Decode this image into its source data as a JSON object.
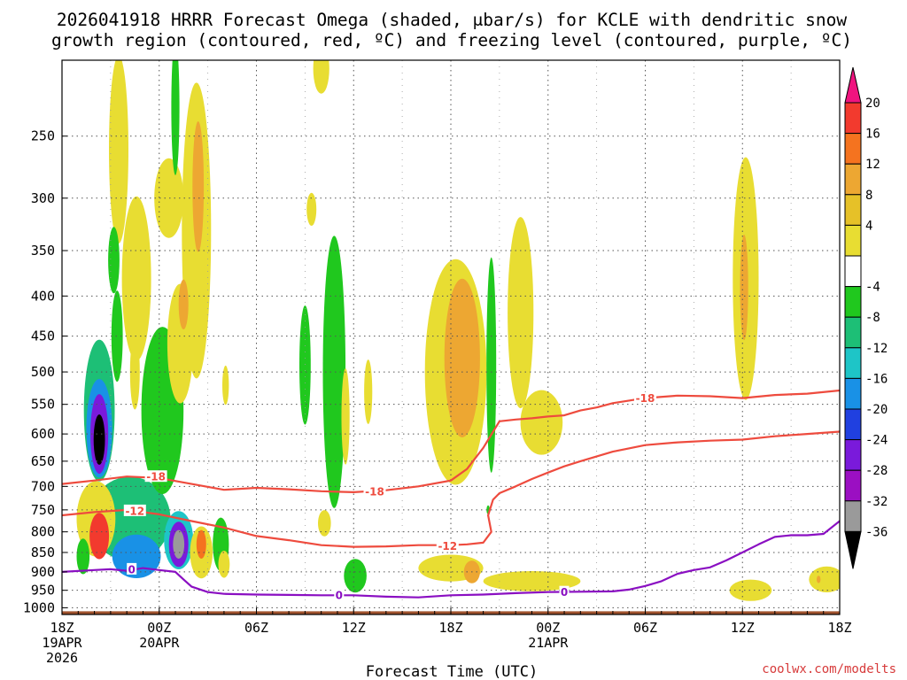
{
  "title_line1": "2026041918 HRRR Forecast Omega (shaded, μbar/s) for KCLE with dendritic snow",
  "title_line2": "growth region (contoured, red, ºC) and freezing level (contoured, purple, ºC)",
  "xlabel": "Forecast Time (UTC)",
  "credit": "coolwx.com/modelts",
  "chart_data": {
    "type": "heatmap",
    "title": "2026041918 HRRR Forecast Omega (shaded, μbar/s) for KCLE with dendritic snow growth region (contoured, red, ºC) and freezing level (contoured, purple, ºC)",
    "xlabel": "Forecast Time (UTC)",
    "ylabel": "",
    "x_range_hours": [
      0,
      48
    ],
    "y_range_mb": [
      200,
      1020
    ],
    "y_scale": "log",
    "grid": true,
    "x_ticks": [
      {
        "h": 0,
        "l1": "18Z",
        "l2": "19APR",
        "l3": "2026"
      },
      {
        "h": 6,
        "l1": "00Z",
        "l2": "20APR",
        "l3": ""
      },
      {
        "h": 12,
        "l1": "06Z",
        "l2": "",
        "l3": ""
      },
      {
        "h": 18,
        "l1": "12Z",
        "l2": "",
        "l3": ""
      },
      {
        "h": 24,
        "l1": "18Z",
        "l2": "",
        "l3": ""
      },
      {
        "h": 30,
        "l1": "00Z",
        "l2": "21APR",
        "l3": ""
      },
      {
        "h": 36,
        "l1": "06Z",
        "l2": "",
        "l3": ""
      },
      {
        "h": 42,
        "l1": "12Z",
        "l2": "",
        "l3": ""
      },
      {
        "h": 48,
        "l1": "18Z",
        "l2": "",
        "l3": ""
      }
    ],
    "y_ticks": [
      250,
      300,
      350,
      400,
      450,
      500,
      550,
      600,
      650,
      700,
      750,
      800,
      850,
      900,
      950,
      1000
    ],
    "colorbar": {
      "levels": [
        20,
        16,
        12,
        8,
        4,
        -4,
        -8,
        -12,
        -16,
        -20,
        -24,
        -28,
        -32,
        -36
      ],
      "colors": [
        "#f0147f",
        "#f23a2e",
        "#f5731f",
        "#eda732",
        "#e6c128",
        "#e8dd32",
        "#ffffff",
        "#20c81e",
        "#1dbf76",
        "#1ec5c7",
        "#1991e6",
        "#2040e0",
        "#7a1adb",
        "#9b0fc2",
        "#9a9a9a",
        "#000000"
      ]
    },
    "omega_blobs": [
      {
        "h": 2.3,
        "p": 610,
        "dh": 0.35,
        "dp": 90,
        "v": -36
      },
      {
        "h": 2.3,
        "p": 600,
        "dh": 0.55,
        "dp": 140,
        "v": -26
      },
      {
        "h": 2.3,
        "p": 590,
        "dh": 0.8,
        "dp": 170,
        "v": -16
      },
      {
        "h": 2.3,
        "p": 560,
        "dh": 0.95,
        "dp": 230,
        "v": -8
      },
      {
        "h": 1.3,
        "p": 860,
        "dh": 0.4,
        "dp": 90,
        "v": -6
      },
      {
        "h": 4.2,
        "p": 770,
        "dh": 2.5,
        "dp": 190,
        "v": -10
      },
      {
        "h": 4.6,
        "p": 860,
        "dh": 1.5,
        "dp": 110,
        "v": -16
      },
      {
        "h": 7.2,
        "p": 830,
        "dh": 0.35,
        "dp": 70,
        "v": -32
      },
      {
        "h": 7.2,
        "p": 830,
        "dh": 0.6,
        "dp": 110,
        "v": -24
      },
      {
        "h": 7.2,
        "p": 820,
        "dh": 0.9,
        "dp": 140,
        "v": -14
      },
      {
        "h": 6.2,
        "p": 560,
        "dh": 1.3,
        "dp": 270,
        "v": -7
      },
      {
        "h": 3.4,
        "p": 450,
        "dh": 0.35,
        "dp": 120,
        "v": -6
      },
      {
        "h": 3.2,
        "p": 360,
        "dh": 0.35,
        "dp": 70,
        "v": -6
      },
      {
        "h": 7.0,
        "p": 230,
        "dh": 0.25,
        "dp": 90,
        "v": -6
      },
      {
        "h": 2.3,
        "p": 810,
        "dh": 0.6,
        "dp": 110,
        "v": 18
      },
      {
        "h": 2.1,
        "p": 770,
        "dh": 1.2,
        "dp": 170,
        "v": 6
      },
      {
        "h": 8.6,
        "p": 830,
        "dh": 0.3,
        "dp": 70,
        "v": 12
      },
      {
        "h": 8.6,
        "p": 850,
        "dh": 0.7,
        "dp": 130,
        "v": 5
      },
      {
        "h": 8.4,
        "p": 290,
        "dh": 0.35,
        "dp": 110,
        "v": 10
      },
      {
        "h": 8.3,
        "p": 330,
        "dh": 0.9,
        "dp": 270,
        "v": 5
      },
      {
        "h": 7.5,
        "p": 410,
        "dh": 0.3,
        "dp": 60,
        "v": 9
      },
      {
        "h": 7.3,
        "p": 460,
        "dh": 0.8,
        "dp": 160,
        "v": 5
      },
      {
        "h": 6.6,
        "p": 300,
        "dh": 0.9,
        "dp": 70,
        "v": 5
      },
      {
        "h": 4.6,
        "p": 380,
        "dh": 0.9,
        "dp": 180,
        "v": 5
      },
      {
        "h": 3.5,
        "p": 260,
        "dh": 0.6,
        "dp": 140,
        "v": 5
      },
      {
        "h": 4.5,
        "p": 500,
        "dh": 0.3,
        "dp": 110,
        "v": 5
      },
      {
        "h": 9.8,
        "p": 830,
        "dh": 0.5,
        "dp": 130,
        "v": -6
      },
      {
        "h": 10.0,
        "p": 880,
        "dh": 0.35,
        "dp": 70,
        "v": 5
      },
      {
        "h": 10.1,
        "p": 520,
        "dh": 0.2,
        "dp": 60,
        "v": 5
      },
      {
        "h": 15.0,
        "p": 490,
        "dh": 0.35,
        "dp": 170,
        "v": -7
      },
      {
        "h": 16.8,
        "p": 500,
        "dh": 0.7,
        "dp": 380,
        "v": -7
      },
      {
        "h": 16.0,
        "p": 205,
        "dh": 0.5,
        "dp": 30,
        "v": 5
      },
      {
        "h": 15.4,
        "p": 310,
        "dh": 0.3,
        "dp": 30,
        "v": 5
      },
      {
        "h": 16.2,
        "p": 780,
        "dh": 0.4,
        "dp": 60,
        "v": 5
      },
      {
        "h": 17.5,
        "p": 570,
        "dh": 0.25,
        "dp": 160,
        "v": 5
      },
      {
        "h": 18.9,
        "p": 530,
        "dh": 0.25,
        "dp": 100,
        "v": 5
      },
      {
        "h": 18.1,
        "p": 910,
        "dh": 0.7,
        "dp": 90,
        "v": -7
      },
      {
        "h": 24.7,
        "p": 480,
        "dh": 1.1,
        "dp": 220,
        "v": 10
      },
      {
        "h": 24.3,
        "p": 500,
        "dh": 1.9,
        "dp": 320,
        "v": 5
      },
      {
        "h": 26.5,
        "p": 490,
        "dh": 0.3,
        "dp": 300,
        "v": -7
      },
      {
        "h": 28.3,
        "p": 420,
        "dh": 0.8,
        "dp": 230,
        "v": 5
      },
      {
        "h": 29.6,
        "p": 580,
        "dh": 1.3,
        "dp": 110,
        "v": 5
      },
      {
        "h": 24.0,
        "p": 890,
        "dh": 2.0,
        "dp": 70,
        "v": 5
      },
      {
        "h": 25.3,
        "p": 900,
        "dh": 0.5,
        "dp": 60,
        "v": 9
      },
      {
        "h": 29.0,
        "p": 925,
        "dh": 3.0,
        "dp": 55,
        "v": 5
      },
      {
        "h": 26.3,
        "p": 750,
        "dh": 0.1,
        "dp": 20,
        "v": -7
      },
      {
        "h": 42.1,
        "p": 390,
        "dh": 0.25,
        "dp": 120,
        "v": 9
      },
      {
        "h": 42.2,
        "p": 380,
        "dh": 0.8,
        "dp": 260,
        "v": 5
      },
      {
        "h": 42.5,
        "p": 950,
        "dh": 1.3,
        "dp": 60,
        "v": 5
      },
      {
        "h": 47.2,
        "p": 920,
        "dh": 1.1,
        "dp": 70,
        "v": 5
      },
      {
        "h": 46.7,
        "p": 920,
        "dh": 0.12,
        "dp": 20,
        "v": 9
      }
    ],
    "series": [
      {
        "name": "-18",
        "color": "#ee4b3e",
        "x": [
          0,
          2,
          4,
          6,
          8,
          10,
          12,
          14,
          16,
          18,
          20,
          22,
          24,
          25,
          26,
          27,
          28,
          29,
          30,
          31,
          32,
          33,
          34,
          36,
          38,
          40,
          42,
          44,
          46,
          48
        ],
        "y": [
          695,
          688,
          680,
          683,
          695,
          707,
          703,
          706,
          710,
          712,
          708,
          700,
          688,
          665,
          625,
          578,
          575,
          573,
          570,
          568,
          560,
          555,
          548,
          540,
          536,
          537,
          540,
          535,
          533,
          528
        ]
      },
      {
        "name": "-12",
        "color": "#ee4b3e",
        "x": [
          0,
          2,
          4,
          6,
          8,
          10,
          12,
          14,
          16,
          18,
          20,
          22,
          24,
          25,
          26,
          26.5,
          26.3,
          26.6,
          27,
          28,
          29,
          30,
          31,
          32,
          34,
          36,
          38,
          40,
          42,
          44,
          46,
          48
        ],
        "y": [
          762,
          755,
          750,
          760,
          775,
          790,
          810,
          820,
          832,
          836,
          835,
          832,
          832,
          830,
          826,
          800,
          762,
          728,
          714,
          700,
          685,
          672,
          660,
          650,
          632,
          620,
          615,
          612,
          610,
          604,
          600,
          596
        ]
      },
      {
        "name": "0",
        "color": "#8a0fc2",
        "x": [
          0,
          2,
          3,
          4,
          5,
          6,
          7,
          7.5,
          8,
          9,
          10,
          12,
          14,
          16,
          18,
          20,
          22,
          24,
          26,
          28,
          30,
          32,
          34,
          35,
          36,
          37,
          38,
          39,
          40,
          41,
          42,
          43,
          44,
          45,
          46,
          47,
          48
        ],
        "y": [
          900,
          895,
          893,
          897,
          890,
          895,
          900,
          920,
          940,
          955,
          960,
          962,
          963,
          964,
          964,
          968,
          970,
          964,
          962,
          958,
          955,
          954,
          953,
          948,
          938,
          925,
          905,
          895,
          888,
          870,
          850,
          830,
          812,
          808,
          808,
          805,
          775
        ]
      }
    ],
    "contour_labels": [
      {
        "text": "-18",
        "h": 5.8,
        "p": 680,
        "c": "#ee4b3e"
      },
      {
        "text": "-18",
        "h": 19.3,
        "p": 710,
        "c": "#ee4b3e"
      },
      {
        "text": "-18",
        "h": 36.0,
        "p": 540,
        "c": "#ee4b3e"
      },
      {
        "text": "-12",
        "h": 4.5,
        "p": 752,
        "c": "#ee4b3e"
      },
      {
        "text": "-12",
        "h": 23.8,
        "p": 834,
        "c": "#ee4b3e"
      },
      {
        "text": "0",
        "h": 4.3,
        "p": 893,
        "c": "#8a0fc2"
      },
      {
        "text": "0",
        "h": 17.1,
        "p": 963,
        "c": "#8a0fc2"
      },
      {
        "text": "0",
        "h": 31.0,
        "p": 955,
        "c": "#8a0fc2"
      }
    ]
  }
}
